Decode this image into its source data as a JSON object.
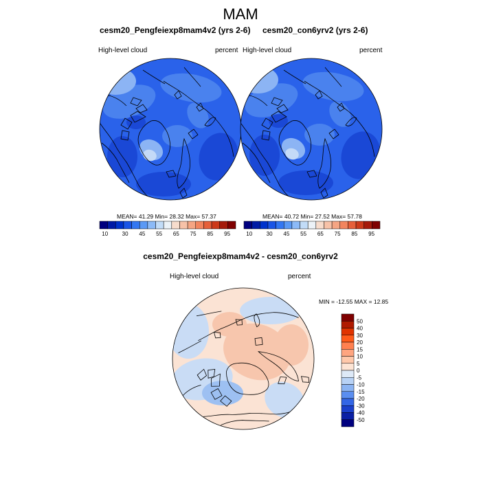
{
  "figure_title": "MAM",
  "panels": [
    {
      "title": "cesm20_Pengfeiexp8mam4v2 (yrs 2-6)",
      "variable": "High-level cloud",
      "units": "percent",
      "stats": "MEAN=  41.29  Min=  28.32  Max=  57.37"
    },
    {
      "title": "cesm20_con6yrv2 (yrs 2-6)",
      "variable": "High-level cloud",
      "units": "percent",
      "stats": "MEAN=  40.72  Min=  27.52  Max=  57.78"
    },
    {
      "title": "cesm20_Pengfeiexp8mam4v2 - cesm20_con6yrv2",
      "variable": "High-level cloud",
      "units": "percent",
      "stats": "MIN = -12.55 MAX =  12.85"
    }
  ],
  "abs_colorbar": {
    "tick_labels": [
      "10",
      "30",
      "45",
      "55",
      "65",
      "75",
      "85",
      "95"
    ],
    "colors": [
      "#00007f",
      "#001aa5",
      "#0033cc",
      "#1a55e6",
      "#3377f2",
      "#5a99f5",
      "#8cbaf7",
      "#c2dcf7",
      "#ecf2f7",
      "#f7dccc",
      "#f7c2a8",
      "#f5a583",
      "#f2855e",
      "#e6603a",
      "#cc3a1a",
      "#a51a0a",
      "#7f0000"
    ]
  },
  "diff_colorbar": {
    "tick_labels": [
      "50",
      "40",
      "30",
      "20",
      "15",
      "10",
      "5",
      "0",
      "-5",
      "-10",
      "-15",
      "-20",
      "-30",
      "-40",
      "-50"
    ],
    "colors": [
      "#7f0000",
      "#b01a00",
      "#e03300",
      "#ff5a1a",
      "#ff8050",
      "#ffa580",
      "#ffc8aa",
      "#fde4d4",
      "#dde9f7",
      "#b8d2f5",
      "#8cb4f2",
      "#5a8ef0",
      "#3366e6",
      "#1a40cc",
      "#0a20a5",
      "#00007f"
    ]
  },
  "map_colors": {
    "abs_base": "#2a62ea",
    "abs_dark": "#1a48d6",
    "abs_mid": "#4a82ee",
    "abs_light": "#8cb4f4",
    "abs_pale": "#c4daf7",
    "diff_base": "#fbe3d4",
    "diff_warm": "#f7c6ad",
    "diff_cool": "#c9dcf5",
    "diff_blue": "#9dc0f2",
    "coast": "#000000"
  }
}
